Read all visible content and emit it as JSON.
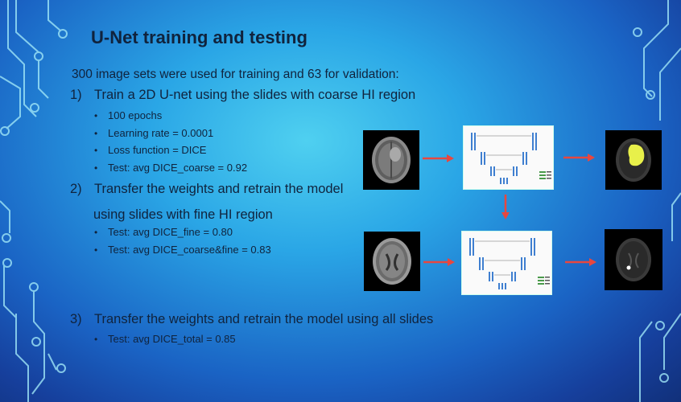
{
  "slide": {
    "title": "U-Net training and testing",
    "intro": "300 image sets were used for training and 63 for validation:",
    "steps": [
      {
        "number": "1)",
        "text": "Train a 2D U-net using the slides with coarse HI region",
        "bullets": [
          "100 epochs",
          "Learning rate = 0.0001",
          "Loss function = DICE",
          "Test: avg DICE_coarse = 0.92"
        ]
      },
      {
        "number": "2)",
        "text": "Transfer the weights and retrain the model",
        "text_cont": "using slides with fine HI region",
        "bullets": [
          "Test: avg DICE_fine = 0.80",
          "Test: avg DICE_coarse&fine = 0.83"
        ]
      },
      {
        "number": "3)",
        "text": "Transfer the weights and retrain the model using all slides",
        "bullets": [
          "Test: avg DICE_total = 0.85"
        ]
      }
    ],
    "bullet_glyph": "•"
  },
  "colors": {
    "arrow": "#e8473f",
    "text": "#10233d",
    "segmentation": "#e8f04a"
  },
  "icons": [
    "brain-mri-icon",
    "unet-diagram-icon",
    "segmented-mri-icon",
    "right-arrow-icon",
    "down-arrow-icon"
  ]
}
